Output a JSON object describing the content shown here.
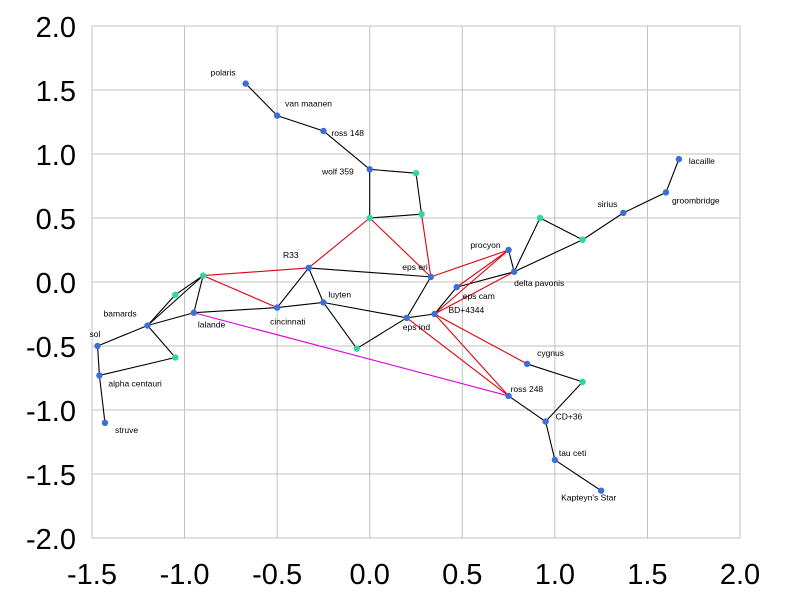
{
  "chart_data": {
    "type": "scatter",
    "title": "",
    "xlabel": "",
    "ylabel": "",
    "xlim": [
      -1.5,
      2.0
    ],
    "ylim": [
      -2.0,
      2.0
    ],
    "grid": true,
    "x_ticks": [
      "-1.5",
      "-1.0",
      "-0.5",
      "0.0",
      "0.5",
      "1.0",
      "1.5",
      "2.0"
    ],
    "y_ticks": [
      "2.0",
      "1.5",
      "1.0",
      "0.5",
      "0.0",
      "-0.5",
      "-1.0",
      "-1.5",
      "-2.0"
    ],
    "colors": {
      "grid": "#c0c0c0",
      "named_point": "#3a6fd8",
      "junction_point": "#2bd9a0",
      "black_link": "#000000",
      "red_link": "#e0000f",
      "magenta_link": "#e000e0"
    },
    "points": [
      {
        "id": "polaris",
        "label": "polaris",
        "x": -0.67,
        "y": 1.55,
        "kind": "named"
      },
      {
        "id": "vanmaanen",
        "label": "van maanen",
        "x": -0.5,
        "y": 1.3,
        "kind": "named"
      },
      {
        "id": "ross148",
        "label": "ross 148",
        "x": -0.25,
        "y": 1.18,
        "kind": "named"
      },
      {
        "id": "wolf359",
        "label": "wolf 359",
        "x": 0.0,
        "y": 0.88,
        "kind": "named"
      },
      {
        "id": "j_wr",
        "label": "",
        "x": 0.25,
        "y": 0.85,
        "kind": "junction"
      },
      {
        "id": "j_wb",
        "label": "",
        "x": 0.0,
        "y": 0.5,
        "kind": "junction"
      },
      {
        "id": "j_wm",
        "label": "",
        "x": 0.28,
        "y": 0.53,
        "kind": "junction"
      },
      {
        "id": "lacaille",
        "label": "lacaille",
        "x": 1.67,
        "y": 0.96,
        "kind": "named"
      },
      {
        "id": "groombridge",
        "label": "groombridge",
        "x": 1.6,
        "y": 0.7,
        "kind": "named"
      },
      {
        "id": "sirius",
        "label": "sirius",
        "x": 1.37,
        "y": 0.54,
        "kind": "named"
      },
      {
        "id": "j_sa",
        "label": "",
        "x": 0.92,
        "y": 0.5,
        "kind": "junction"
      },
      {
        "id": "j_sb",
        "label": "",
        "x": 1.15,
        "y": 0.33,
        "kind": "junction"
      },
      {
        "id": "procyon",
        "label": "procyon",
        "x": 0.75,
        "y": 0.25,
        "kind": "named"
      },
      {
        "id": "deltapavonis",
        "label": "delta pavonis",
        "x": 0.78,
        "y": 0.08,
        "kind": "named"
      },
      {
        "id": "R33",
        "label": "R33",
        "x": -0.33,
        "y": 0.11,
        "kind": "named"
      },
      {
        "id": "epseri",
        "label": "eps eri",
        "x": 0.33,
        "y": 0.04,
        "kind": "named"
      },
      {
        "id": "epscam",
        "label": "eps cam",
        "x": 0.47,
        "y": -0.04,
        "kind": "named"
      },
      {
        "id": "BD4344",
        "label": "BD+4344",
        "x": 0.35,
        "y": -0.25,
        "kind": "named"
      },
      {
        "id": "epsind",
        "label": "eps ind",
        "x": 0.2,
        "y": -0.28,
        "kind": "named"
      },
      {
        "id": "luyten",
        "label": "luyten",
        "x": -0.25,
        "y": -0.16,
        "kind": "named"
      },
      {
        "id": "cincinnati",
        "label": "cincinnati",
        "x": -0.5,
        "y": -0.2,
        "kind": "named"
      },
      {
        "id": "j_lc",
        "label": "",
        "x": -0.07,
        "y": -0.52,
        "kind": "junction"
      },
      {
        "id": "j_l1",
        "label": "",
        "x": -0.9,
        "y": 0.05,
        "kind": "junction"
      },
      {
        "id": "j_l2",
        "label": "",
        "x": -1.05,
        "y": -0.1,
        "kind": "junction"
      },
      {
        "id": "lalande",
        "label": "lalande",
        "x": -0.95,
        "y": -0.24,
        "kind": "named"
      },
      {
        "id": "bamards",
        "label": "bamards",
        "x": -1.2,
        "y": -0.34,
        "kind": "named"
      },
      {
        "id": "j_b1",
        "label": "",
        "x": -1.05,
        "y": -0.59,
        "kind": "junction"
      },
      {
        "id": "sol",
        "label": "sol",
        "x": -1.47,
        "y": -0.5,
        "kind": "named"
      },
      {
        "id": "alphacentauri",
        "label": "alpha centauri",
        "x": -1.46,
        "y": -0.73,
        "kind": "named"
      },
      {
        "id": "struve",
        "label": "struve",
        "x": -1.43,
        "y": -1.1,
        "kind": "named"
      },
      {
        "id": "cygnus",
        "label": "cygnus",
        "x": 0.85,
        "y": -0.64,
        "kind": "named"
      },
      {
        "id": "j_cy",
        "label": "",
        "x": 1.15,
        "y": -0.78,
        "kind": "junction"
      },
      {
        "id": "ross248",
        "label": "ross 248",
        "x": 0.75,
        "y": -0.89,
        "kind": "named"
      },
      {
        "id": "CD36",
        "label": "CD+36",
        "x": 0.95,
        "y": -1.09,
        "kind": "named"
      },
      {
        "id": "tauceti",
        "label": "tau ceti",
        "x": 1.0,
        "y": -1.39,
        "kind": "named"
      },
      {
        "id": "kapteyn",
        "label": "Kapteyn's Star",
        "x": 1.25,
        "y": -1.63,
        "kind": "named"
      }
    ],
    "links": [
      {
        "from": "polaris",
        "to": "vanmaanen",
        "color": "black"
      },
      {
        "from": "vanmaanen",
        "to": "ross148",
        "color": "black"
      },
      {
        "from": "ross148",
        "to": "wolf359",
        "color": "black"
      },
      {
        "from": "wolf359",
        "to": "j_wr",
        "color": "black"
      },
      {
        "from": "wolf359",
        "to": "j_wb",
        "color": "black"
      },
      {
        "from": "j_wr",
        "to": "j_wm",
        "color": "black"
      },
      {
        "from": "j_wb",
        "to": "j_wm",
        "color": "black"
      },
      {
        "from": "lacaille",
        "to": "groombridge",
        "color": "black"
      },
      {
        "from": "groombridge",
        "to": "sirius",
        "color": "black"
      },
      {
        "from": "sirius",
        "to": "j_sb",
        "color": "black"
      },
      {
        "from": "j_sb",
        "to": "j_sa",
        "color": "black"
      },
      {
        "from": "j_sa",
        "to": "deltapavonis",
        "color": "black"
      },
      {
        "from": "j_sb",
        "to": "deltapavonis",
        "color": "black"
      },
      {
        "from": "procyon",
        "to": "deltapavonis",
        "color": "black"
      },
      {
        "from": "deltapavonis",
        "to": "epscam",
        "color": "black"
      },
      {
        "from": "R33",
        "to": "epseri",
        "color": "black"
      },
      {
        "from": "epseri",
        "to": "epsind",
        "color": "black"
      },
      {
        "from": "epsind",
        "to": "BD4344",
        "color": "black"
      },
      {
        "from": "BD4344",
        "to": "epscam",
        "color": "black"
      },
      {
        "from": "R33",
        "to": "luyten",
        "color": "black"
      },
      {
        "from": "R33",
        "to": "cincinnati",
        "color": "black"
      },
      {
        "from": "cincinnati",
        "to": "luyten",
        "color": "black"
      },
      {
        "from": "luyten",
        "to": "epsind",
        "color": "black"
      },
      {
        "from": "epsind",
        "to": "j_lc",
        "color": "black"
      },
      {
        "from": "j_lc",
        "to": "luyten",
        "color": "black"
      },
      {
        "from": "j_l1",
        "to": "lalande",
        "color": "black"
      },
      {
        "from": "j_l1",
        "to": "bamards",
        "color": "black"
      },
      {
        "from": "j_l2",
        "to": "bamards",
        "color": "black"
      },
      {
        "from": "lalande",
        "to": "bamards",
        "color": "black"
      },
      {
        "from": "lalande",
        "to": "cincinnati",
        "color": "black"
      },
      {
        "from": "bamards",
        "to": "sol",
        "color": "black"
      },
      {
        "from": "bamards",
        "to": "j_b1",
        "color": "black"
      },
      {
        "from": "j_b1",
        "to": "alphacentauri",
        "color": "black"
      },
      {
        "from": "sol",
        "to": "alphacentauri",
        "color": "black"
      },
      {
        "from": "alphacentauri",
        "to": "struve",
        "color": "black"
      },
      {
        "from": "cygnus",
        "to": "j_cy",
        "color": "black"
      },
      {
        "from": "j_cy",
        "to": "CD36",
        "color": "black"
      },
      {
        "from": "ross248",
        "to": "CD36",
        "color": "black"
      },
      {
        "from": "CD36",
        "to": "tauceti",
        "color": "black"
      },
      {
        "from": "tauceti",
        "to": "kapteyn",
        "color": "black"
      },
      {
        "from": "j_wb",
        "to": "R33",
        "color": "red"
      },
      {
        "from": "j_wb",
        "to": "epseri",
        "color": "red"
      },
      {
        "from": "j_wm",
        "to": "epseri",
        "color": "red"
      },
      {
        "from": "R33",
        "to": "j_l1",
        "color": "red"
      },
      {
        "from": "j_l1",
        "to": "cincinnati",
        "color": "red"
      },
      {
        "from": "j_l1",
        "to": "j_l2",
        "color": "black"
      },
      {
        "from": "epseri",
        "to": "procyon",
        "color": "red"
      },
      {
        "from": "epscam",
        "to": "procyon",
        "color": "red"
      },
      {
        "from": "BD4344",
        "to": "procyon",
        "color": "red"
      },
      {
        "from": "BD4344",
        "to": "deltapavonis",
        "color": "red"
      },
      {
        "from": "BD4344",
        "to": "ross248",
        "color": "red"
      },
      {
        "from": "BD4344",
        "to": "cygnus",
        "color": "red"
      },
      {
        "from": "epsind",
        "to": "ross248",
        "color": "red"
      },
      {
        "from": "lalande",
        "to": "ross248",
        "color": "magenta"
      }
    ]
  }
}
